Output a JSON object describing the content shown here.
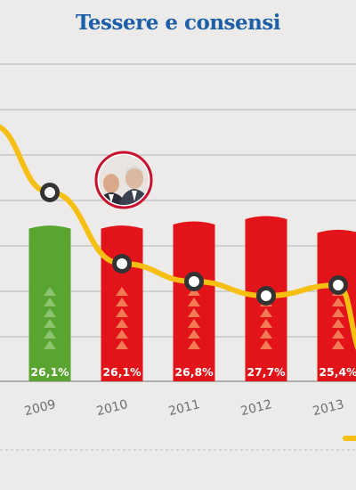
{
  "title": "Tessere e consensi",
  "colors": {
    "background": "#ecebea",
    "title": "#1d5fa8",
    "grid": "#b6b6b6",
    "bar_green": "#5aa531",
    "bar_red": "#e2141a",
    "arrow_green": "#8bc56b",
    "arrow_red": "#f07b55",
    "line": "#f7bf12",
    "marker_stroke": "#333333",
    "inset_ring": "#c8102e"
  },
  "icons": {
    "inset": "photo-portraits-icon",
    "marker": "line-marker-icon"
  },
  "chart_data": {
    "type": "bar+line",
    "title": "Tessere e consensi",
    "xlabel": "",
    "ylabel": "",
    "categories": [
      "2009",
      "2010",
      "2011",
      "2012",
      "2013"
    ],
    "bars": {
      "values": [
        26.1,
        26.1,
        26.8,
        27.7,
        25.4
      ],
      "labels": [
        "26,1%",
        "26,1%",
        "26,8%",
        "27,7%",
        "25,4%"
      ],
      "colors": [
        "green",
        "red",
        "red",
        "red",
        "red"
      ],
      "arrow_counts": [
        6,
        6,
        6,
        6,
        6
      ]
    },
    "line": {
      "values": [
        830,
        630,
        580,
        540,
        570
      ],
      "start_value": 1020,
      "end_value": 370
    },
    "grid": true
  }
}
